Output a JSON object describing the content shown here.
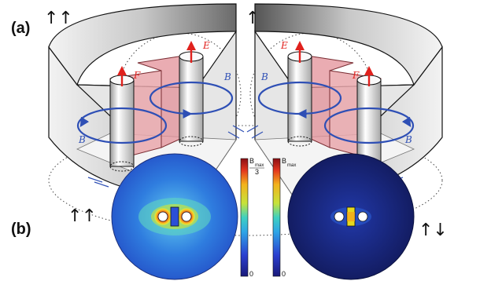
{
  "labels": {
    "panel_a": "(a)",
    "panel_b": "(b)",
    "orient_parallel": "↑↑",
    "orient_antiparallel": "↑↓"
  },
  "vectors": {
    "B": "B",
    "E": "E",
    "F": "F"
  },
  "colorbars": {
    "left": {
      "top_main": "B",
      "top_sub": "max",
      "top_den": "3",
      "bottom": "0"
    },
    "right": {
      "top_main": "B",
      "top_sub": "max",
      "bottom": "0"
    }
  },
  "colors": {
    "field_line": "#2E4FB5",
    "force_arrow": "#E0211D",
    "pink_slab": "#E9A7AC",
    "background": "#ffffff"
  }
}
